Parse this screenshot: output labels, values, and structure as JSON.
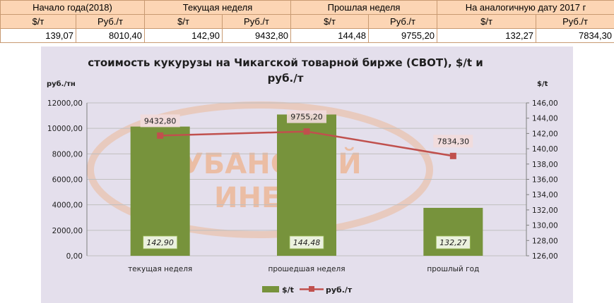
{
  "table": {
    "headers": [
      "Начало года(2018)",
      "Текущая неделя",
      "Прошлая неделя",
      "На аналогичную дату 2017 г"
    ],
    "units": [
      "$/т",
      "Руб./т",
      "$/т",
      "Руб./т",
      "$/т",
      "Руб./т",
      "$/т",
      "Руб./т"
    ],
    "values": [
      "139,07",
      "8010,40",
      "142,90",
      "9432,80",
      "144,48",
      "9755,20",
      "132,27",
      "7834,30"
    ]
  },
  "colors": {
    "bar": "#77933c",
    "line": "#c0504d",
    "plot_bg": "#e4dfec",
    "table_header_bg": "#fcd5b4",
    "watermark": "#f2a36a"
  },
  "watermark": {
    "line1": "КУБАНСКИЙ",
    "line2": "ИНЕД"
  },
  "chart_data": {
    "type": "bar",
    "title_lines": [
      "стоимость кукурузы на Чикагской товарной бирже (CBOT), $/t и",
      "руб./т"
    ],
    "ylabel": "руб./тн",
    "y2label": "$/t",
    "categories": [
      "текущая неделя",
      "прошедшая неделя",
      "прошлый год"
    ],
    "ylim": [
      0,
      12000
    ],
    "y_ticks": [
      "0,00",
      "2000,00",
      "4000,00",
      "6000,00",
      "8000,00",
      "10000,00",
      "12000,00"
    ],
    "y2lim": [
      126,
      146
    ],
    "y2_ticks": [
      "126,00",
      "128,00",
      "130,00",
      "132,00",
      "134,00",
      "136,00",
      "138,00",
      "140,00",
      "142,00",
      "144,00",
      "146,00"
    ],
    "grid": true,
    "legend_position": "bottom",
    "series": [
      {
        "name": "$/t",
        "type": "bar",
        "axis": "right",
        "values": [
          142.9,
          144.48,
          132.27
        ],
        "labels": [
          "142,90",
          "144,48",
          "132,27"
        ]
      },
      {
        "name": "руб./т",
        "type": "line",
        "axis": "left",
        "values": [
          9432.8,
          9755.2,
          7834.3
        ],
        "labels": [
          "9432,80",
          "9755,20",
          "7834,30"
        ]
      }
    ]
  }
}
